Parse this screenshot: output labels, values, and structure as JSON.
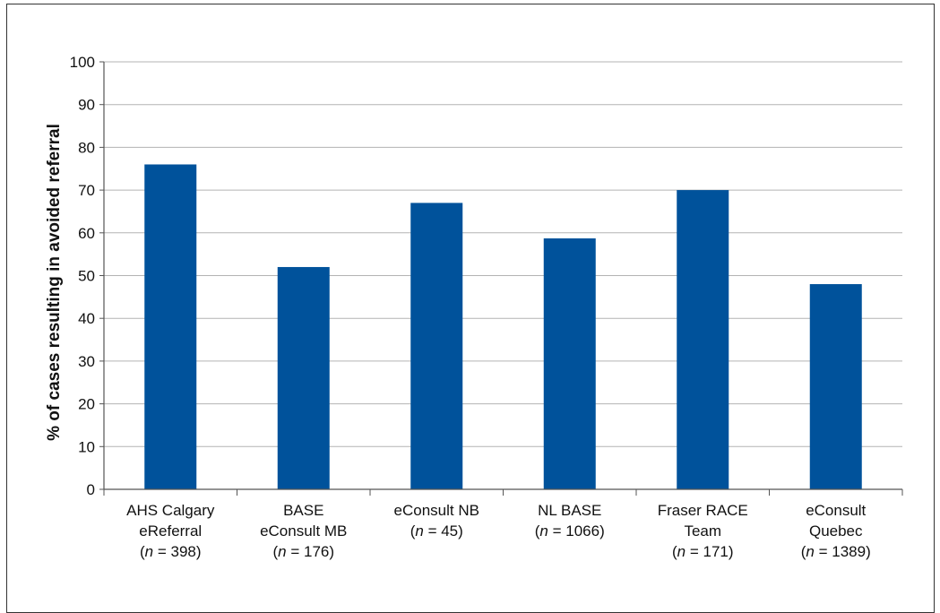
{
  "chart_data": {
    "type": "bar",
    "title": "",
    "xlabel": "",
    "ylabel": "% of cases resulting in avoided referral",
    "ylim": [
      0,
      100
    ],
    "yticks": [
      0,
      10,
      20,
      30,
      40,
      50,
      60,
      70,
      80,
      90,
      100
    ],
    "grid": true,
    "legend": "none",
    "categories": [
      {
        "lines": [
          "AHS Calgary",
          "eReferral"
        ],
        "n_label": "n",
        "n_rest": " = 398)"
      },
      {
        "lines": [
          "BASE",
          "eConsult MB"
        ],
        "n_label": "n",
        "n_rest": " = 176)"
      },
      {
        "lines": [
          "eConsult NB"
        ],
        "n_label": "n",
        "n_rest": " = 45)"
      },
      {
        "lines": [
          "NL BASE"
        ],
        "n_label": "n",
        "n_rest": " = 1066)"
      },
      {
        "lines": [
          "Fraser RACE",
          "Team"
        ],
        "n_label": "n",
        "n_rest": " = 171)"
      },
      {
        "lines": [
          "eConsult",
          "Quebec"
        ],
        "n_label": "n",
        "n_rest": " = 1389)"
      }
    ],
    "values": [
      76,
      52,
      67,
      58.7,
      70,
      48
    ],
    "colors": {
      "bar": "#00529b",
      "grid": "#b3b3b3",
      "axis": "#555555"
    }
  }
}
